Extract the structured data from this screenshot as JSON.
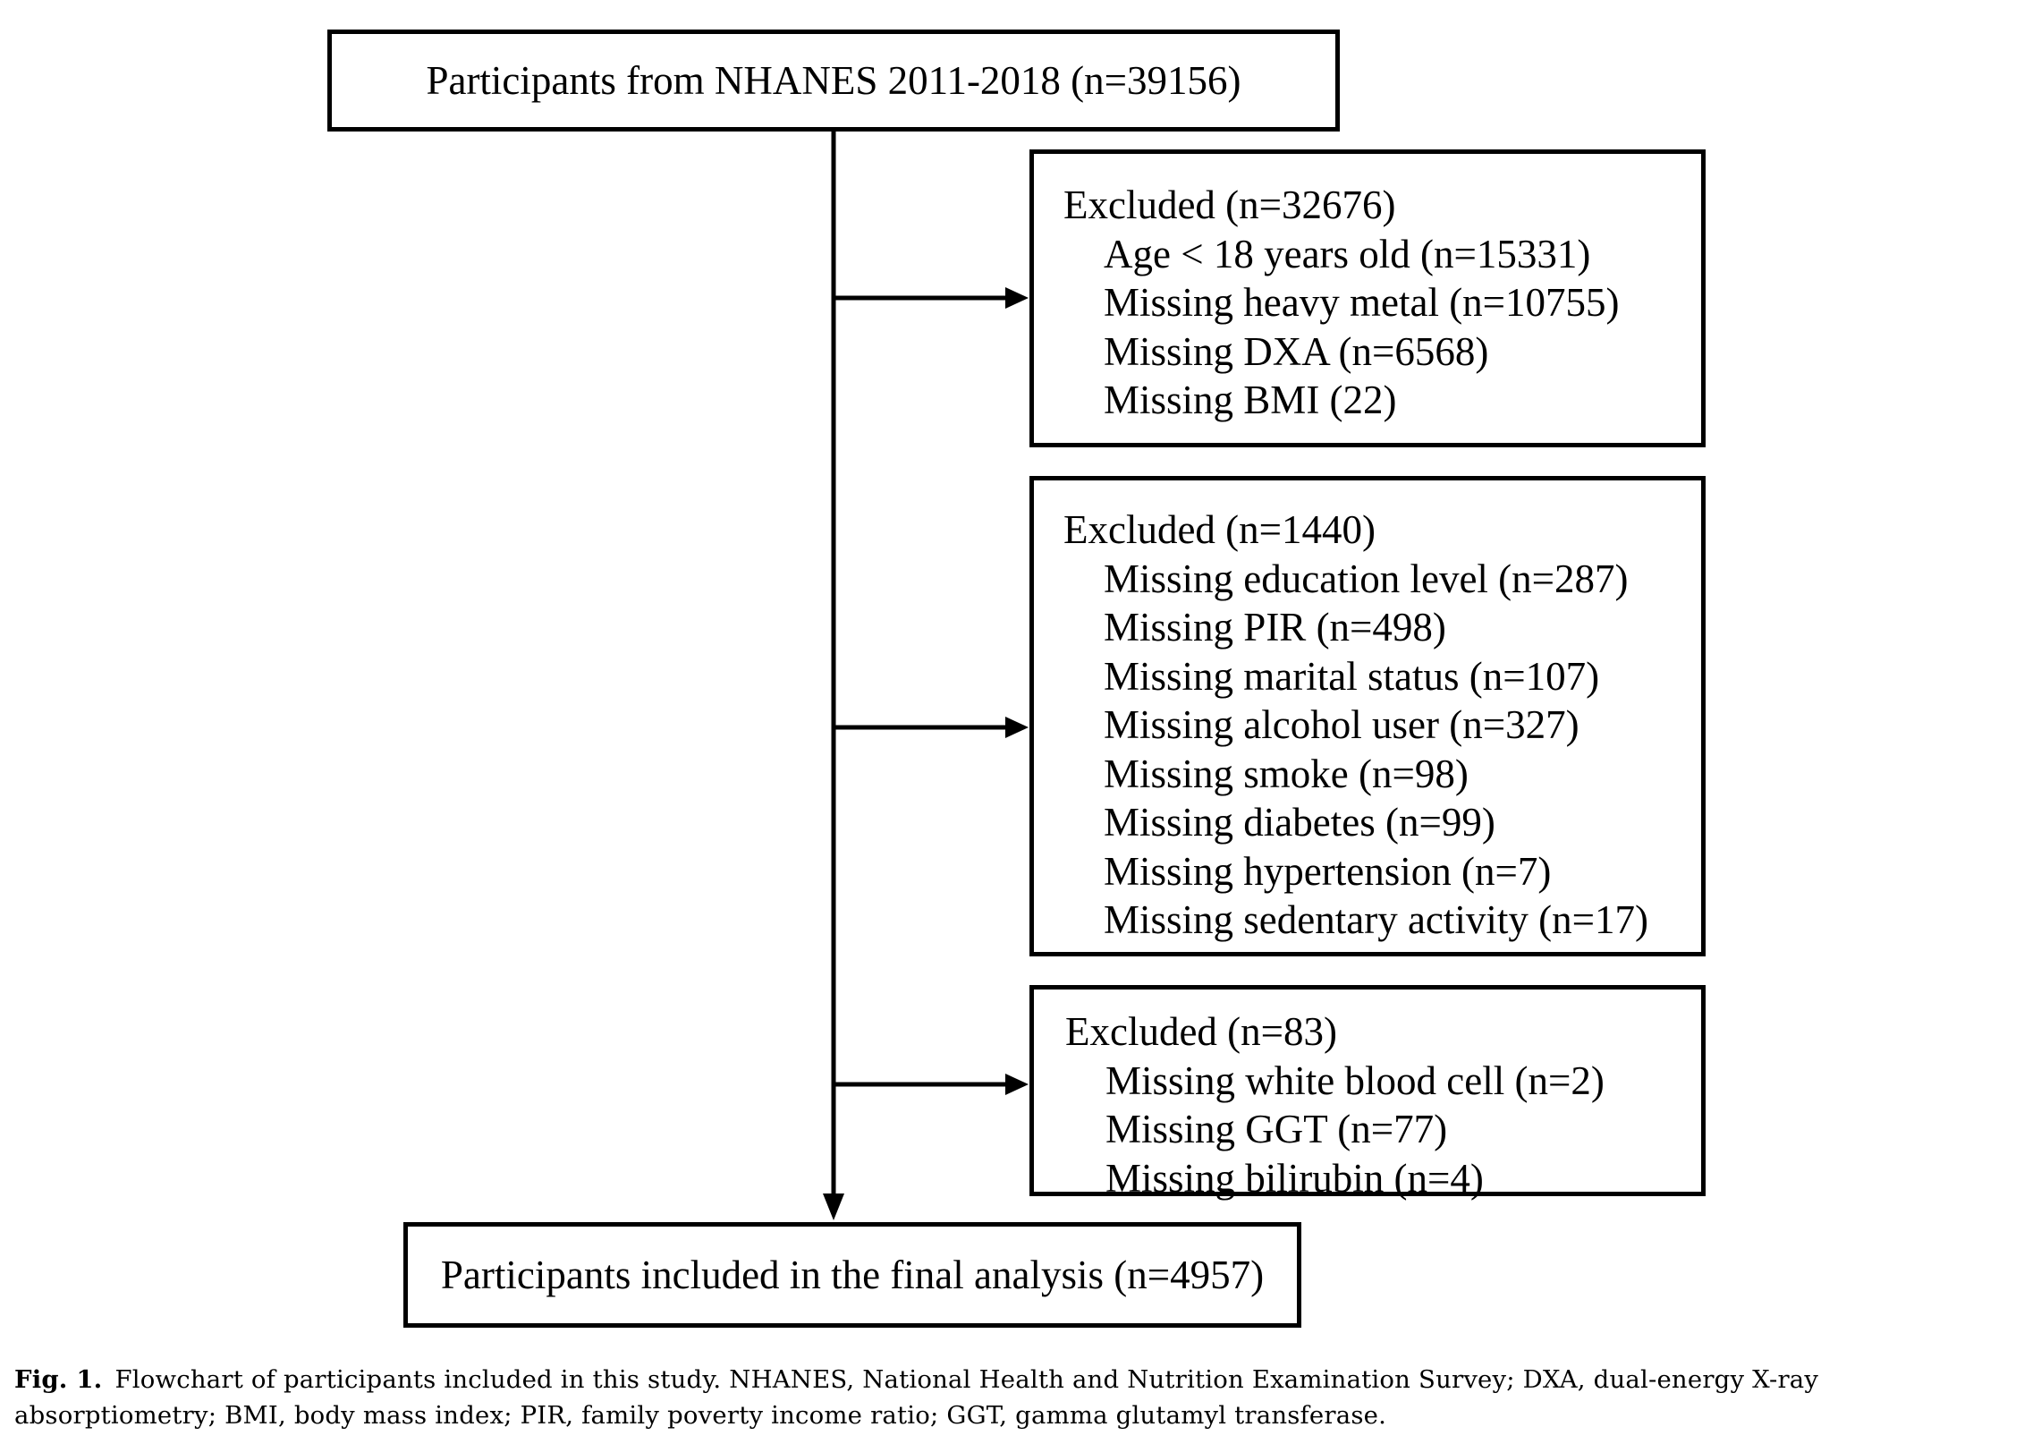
{
  "flowchart": {
    "top": "Participants from NHANES 2011-2018 (n=39156)",
    "exclusions": [
      {
        "heading": "Excluded (n=32676)",
        "items": [
          "Age < 18 years old (n=15331)",
          "Missing heavy metal (n=10755)",
          "Missing DXA (n=6568)",
          "Missing BMI (22)"
        ]
      },
      {
        "heading": "Excluded (n=1440)",
        "items": [
          "Missing education level (n=287)",
          "Missing PIR (n=498)",
          "Missing marital status (n=107)",
          "Missing alcohol user (n=327)",
          "Missing smoke (n=98)",
          "Missing diabetes (n=99)",
          "Missing hypertension (n=7)",
          "Missing sedentary activity (n=17)"
        ]
      },
      {
        "heading": "Excluded (n=83)",
        "items": [
          "Missing white blood cell (n=2)",
          "Missing GGT (n=77)",
          "Missing bilirubin (n=4)"
        ]
      }
    ],
    "bottom": "Participants included in the final analysis (n=4957)"
  },
  "caption": {
    "label": "Fig. 1.",
    "text": "Flowchart of participants included in this study. NHANES, National Health and Nutrition Examination Survey; DXA, dual-energy X-ray absorptiometry; BMI, body mass index; PIR, family poverty income ratio; GGT, gamma glutamyl transferase."
  },
  "colors": {
    "line": "#000000",
    "background": "#ffffff"
  }
}
